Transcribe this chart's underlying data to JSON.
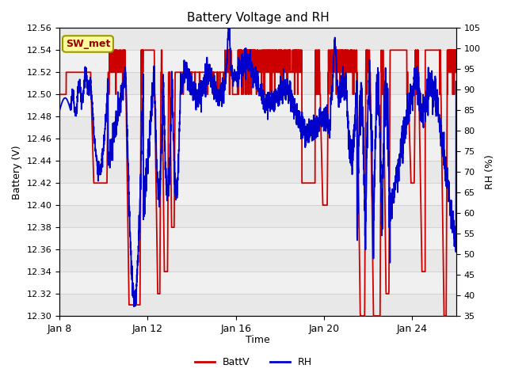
{
  "title": "Battery Voltage and RH",
  "xlabel": "Time",
  "ylabel_left": "Battery (V)",
  "ylabel_right": "RH (%)",
  "annotation": "SW_met",
  "ylim_left": [
    12.3,
    12.56
  ],
  "ylim_right": [
    35,
    105
  ],
  "yticks_left": [
    12.3,
    12.32,
    12.34,
    12.36,
    12.38,
    12.4,
    12.42,
    12.44,
    12.46,
    12.48,
    12.5,
    12.52,
    12.54,
    12.56
  ],
  "yticks_right": [
    35,
    40,
    45,
    50,
    55,
    60,
    65,
    70,
    75,
    80,
    85,
    90,
    95,
    100,
    105
  ],
  "xtick_labels": [
    "Jan 8",
    "Jan 12",
    "Jan 16",
    "Jan 20",
    "Jan 24"
  ],
  "xtick_positions": [
    0,
    4,
    8,
    12,
    16
  ],
  "xlim": [
    0,
    18
  ],
  "batt_color": "#cc0000",
  "rh_color": "#0000cc",
  "legend_labels": [
    "BattV",
    "RH"
  ],
  "background_color": "#ffffff",
  "annotation_bg": "#ffff99",
  "annotation_fg": "#990000",
  "annotation_border": "#999900",
  "band_colors": [
    "#e8e8e8",
    "#f0f0f0"
  ]
}
